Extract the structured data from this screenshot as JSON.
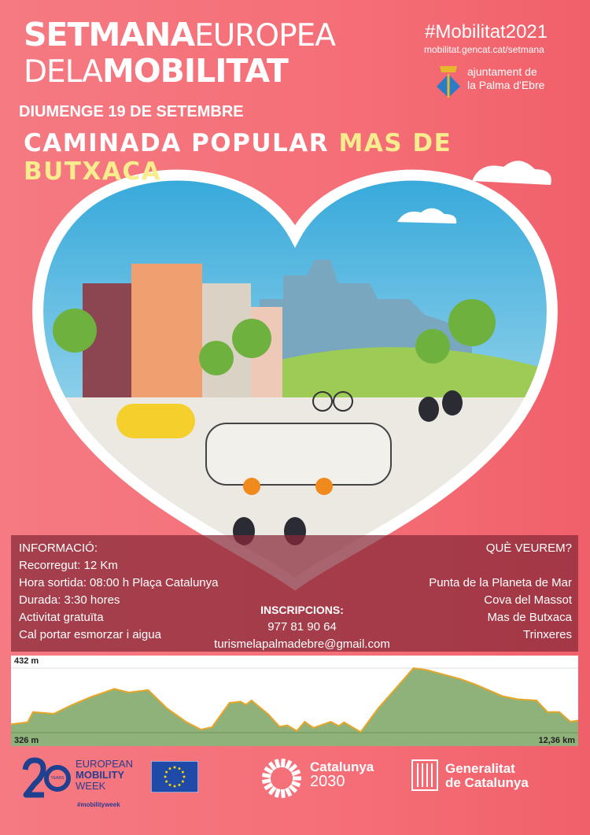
{
  "header": {
    "title_line1_bold": "SETMANA",
    "title_line1_light": "EUROPEA",
    "title_line2_light1": "DE",
    "title_line2_light2": "LA",
    "title_line2_bold": "MOBILITAT",
    "hashtag": "#Mobilitat2021",
    "url": "mobilitat.gencat.cat/setmana",
    "council_line1": "ajuntament de",
    "council_line2": "la Palma d'Ebre",
    "date": "DIUMENGE 19 DE SETEMBRE",
    "event_prefix": "CAMINADA POPULAR",
    "event_name": "MAS DE BUTXACA"
  },
  "colors": {
    "background": "#f5737c",
    "highlight": "#f7ec8e",
    "info_panel": "#87283a",
    "profile_fill": "#8fb27a",
    "profile_line": "#e8a628"
  },
  "info": {
    "heading": "INFORMACIÓ:",
    "items": [
      "Recorregut: 12 Km",
      "Hora sortida: 08:00 h Plaça Catalunya",
      "Durada: 3:30 hores",
      "Activitat gratuïta",
      "Cal portar esmorzar i aigua"
    ]
  },
  "sights": {
    "heading": "QUÈ VEUREM?",
    "items": [
      "Punta de la Planeta de Mar",
      "Cova del Massot",
      "Mas de Butxaca",
      "Trinxeres"
    ]
  },
  "registration": {
    "heading": "INSCRIPCIONS:",
    "phone": "977 81 90 64",
    "email": "turismelapalmadebre@gmail.com"
  },
  "chart_data": {
    "type": "area",
    "ylim": [
      326,
      432
    ],
    "ymax_label": "432 m",
    "ymin_label": "326 m",
    "xmax_label": "12,36 km",
    "xlim": [
      0,
      12.36
    ],
    "km": [
      0,
      0.36,
      0.48,
      0.93,
      1.34,
      1.75,
      2.25,
      2.57,
      2.99,
      3.4,
      3.81,
      4.14,
      4.38,
      4.76,
      5.0,
      5.12,
      5.24,
      5.61,
      5.85,
      6.02,
      6.23,
      6.4,
      6.59,
      6.97,
      7.14,
      7.26,
      7.62,
      8.0,
      8.41,
      8.77,
      9.06,
      9.8,
      10.13,
      10.71,
      11.04,
      11.45,
      11.69,
      11.95,
      12.19,
      12.36
    ],
    "elevation_m": [
      340,
      343,
      360,
      357,
      372,
      385,
      398,
      392,
      396,
      366,
      344,
      331,
      335,
      375,
      377,
      372,
      379,
      356,
      336,
      338,
      329,
      344,
      334,
      344,
      337,
      343,
      327,
      366,
      401,
      432,
      429,
      414,
      405,
      386,
      381,
      379,
      360,
      360,
      344,
      346
    ]
  },
  "footer": {
    "emw_years": "YEARS",
    "emw_line1": "EUROPEAN",
    "emw_line2": "MOBILITY",
    "emw_line3": "WEEK",
    "emw_hashtag": "#mobilityweek",
    "cat2030_line1": "Catalunya",
    "cat2030_line2": "2030",
    "gen_line1": "Generalitat",
    "gen_line2": "de Catalunya"
  }
}
